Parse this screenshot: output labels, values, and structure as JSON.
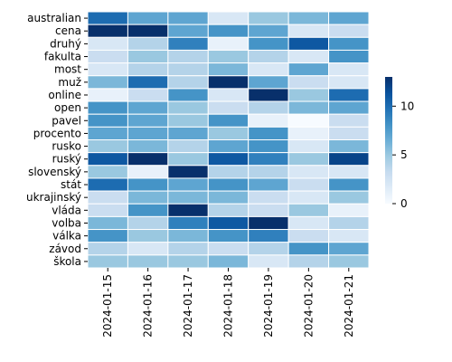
{
  "chart_data": {
    "type": "heatmap",
    "title": "",
    "xlabel": "",
    "ylabel": "",
    "x": [
      "2024-01-15",
      "2024-01-16",
      "2024-01-17",
      "2024-01-18",
      "2024-01-19",
      "2024-01-20",
      "2024-01-21"
    ],
    "y": [
      "australian",
      "cena",
      "druhý",
      "fakulta",
      "most",
      "muž",
      "online",
      "open",
      "pavel",
      "procento",
      "rusko",
      "ruský",
      "slovenský",
      "stát",
      "ukrajinský",
      "vláda",
      "volba",
      "válka",
      "závod",
      "škola"
    ],
    "values": [
      [
        10,
        7,
        7,
        2,
        5,
        6,
        7
      ],
      [
        13,
        13,
        7,
        8,
        7,
        2,
        3
      ],
      [
        2,
        4,
        9,
        1,
        8,
        11,
        8
      ],
      [
        3,
        5,
        4,
        5,
        4,
        2,
        8
      ],
      [
        2,
        4,
        4,
        6,
        2,
        7,
        2
      ],
      [
        6,
        10,
        4,
        13,
        7,
        3,
        2
      ],
      [
        1,
        3,
        8,
        2,
        13,
        5,
        10
      ],
      [
        8,
        7,
        5,
        3,
        4,
        6,
        7
      ],
      [
        8,
        7,
        5,
        8,
        1,
        0,
        3
      ],
      [
        7,
        7,
        7,
        5,
        8,
        1,
        3
      ],
      [
        5,
        6,
        4,
        7,
        8,
        2,
        6
      ],
      [
        11,
        13,
        5,
        11,
        9,
        5,
        12
      ],
      [
        5,
        1,
        13,
        4,
        4,
        2,
        2
      ],
      [
        10,
        8,
        7,
        8,
        7,
        3,
        8
      ],
      [
        3,
        6,
        6,
        6,
        3,
        2,
        5
      ],
      [
        3,
        8,
        13,
        4,
        3,
        5,
        1
      ],
      [
        6,
        4,
        9,
        11,
        13,
        2,
        4
      ],
      [
        8,
        5,
        6,
        8,
        9,
        3,
        2
      ],
      [
        4,
        2,
        4,
        3,
        4,
        8,
        7
      ],
      [
        5,
        5,
        5,
        6,
        2,
        4,
        5
      ]
    ],
    "colorscale": "Blues",
    "vmin": 0,
    "vmax": 13,
    "colorbar_ticks": [
      0,
      5,
      10
    ],
    "cell_border_color": "#ffffff"
  }
}
